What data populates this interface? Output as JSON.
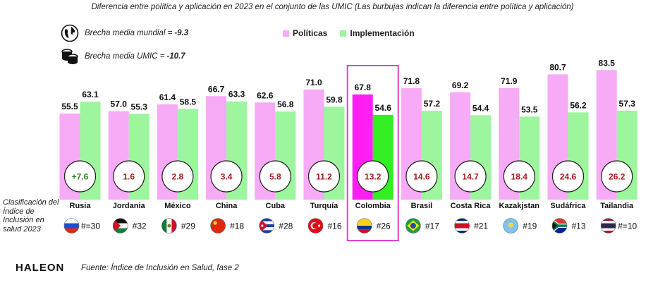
{
  "title": "Diferencia entre política y aplicación en 2023 en el conjunto de las UMIC (Las burbujas indican la diferencia entre política y aplicación)",
  "averages": {
    "world_label": "Brecha media mundial =",
    "world_value": "-9.3",
    "world_icon": "globe-icon",
    "umic_label": "Brecha media UMIC =",
    "umic_value": "-10.7",
    "umic_icon": "coins-icon"
  },
  "legend": {
    "policies": "Políticas",
    "implementation": "Implementación"
  },
  "rank_caption": "Clasificación del Índice de Inclusión en salud 2023",
  "colors": {
    "policies": "#f7aaf5",
    "implementation": "#9df59d",
    "policies_highlight": "#ff1ff2",
    "implementation_highlight": "#33ee22",
    "highlight_border": "#e040d8",
    "gap_positive": "#2a8a1e",
    "gap_negative": "#a8191e"
  },
  "chart_data": {
    "type": "bar",
    "categories": [
      "Rusia",
      "Jordania",
      "México",
      "China",
      "Cuba",
      "Turquía",
      "Colombia",
      "Brasil",
      "Costa Rica",
      "Kazakjstan",
      "Sudáfrica",
      "Tailandia"
    ],
    "series": [
      {
        "name": "Políticas",
        "values": [
          55.5,
          57.0,
          61.4,
          66.7,
          62.6,
          71.0,
          67.8,
          71.8,
          69.2,
          71.9,
          80.7,
          83.5
        ]
      },
      {
        "name": "Implementación",
        "values": [
          63.1,
          55.3,
          58.5,
          63.3,
          56.8,
          59.8,
          54.6,
          57.2,
          54.4,
          53.5,
          56.2,
          57.3
        ]
      }
    ],
    "gaps": [
      "+7.6",
      "1.6",
      "2.8",
      "3.4",
      "5.8",
      "11.2",
      "13.2",
      "14.6",
      "14.7",
      "18.4",
      "24.6",
      "26.2"
    ],
    "ranks": [
      "#=30",
      "#32",
      "#29",
      "#18",
      "#28",
      "#16",
      "#26",
      "#17",
      "#21",
      "#19",
      "#13",
      "#=10"
    ],
    "flags": [
      "russia-flag-icon",
      "jordan-flag-icon",
      "mexico-flag-icon",
      "china-flag-icon",
      "cuba-flag-icon",
      "turkey-flag-icon",
      "colombia-flag-icon",
      "brazil-flag-icon",
      "costa-rica-flag-icon",
      "kazakhstan-flag-icon",
      "south-africa-flag-icon",
      "thailand-flag-icon"
    ],
    "highlight": "Colombia",
    "ylim": [
      0,
      100
    ]
  },
  "footer": {
    "logo": "HALEON",
    "source": "Fuente: Índice de Inclusión en Salud, fase 2"
  }
}
